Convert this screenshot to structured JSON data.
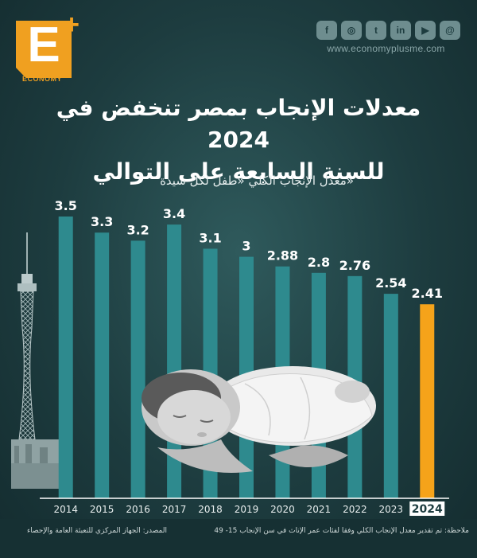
{
  "brand": {
    "logo_letter": "E",
    "logo_plus": "+",
    "logo_word": "ECONOMY",
    "website": "www.economyplusme.com",
    "socials": [
      {
        "icon": "facebook-icon",
        "glyph": "f"
      },
      {
        "icon": "instagram-icon",
        "glyph": "◎"
      },
      {
        "icon": "twitter-icon",
        "glyph": "t"
      },
      {
        "icon": "linkedin-icon",
        "glyph": "in"
      },
      {
        "icon": "youtube-icon",
        "glyph": "▶"
      },
      {
        "icon": "threads-icon",
        "glyph": "@"
      }
    ]
  },
  "title_line1": "معدلات الإنجاب بمصر تنخفض في 2024",
  "title_line2": "للسنة السابعة على التوالي",
  "colors": {
    "bar": "#2e8a8e",
    "highlight_bar": "#f5a31a",
    "background": "#1d3c3f",
    "text": "#ffffff"
  },
  "chart_data": {
    "type": "bar",
    "subtitle": "معدل الإنجاب الكلي «طفل لكل سيدة»",
    "categories": [
      "2014",
      "2015",
      "2016",
      "2017",
      "2018",
      "2019",
      "2020",
      "2021",
      "2022",
      "2023",
      "2024"
    ],
    "values": [
      3.5,
      3.3,
      3.2,
      3.4,
      3.1,
      3,
      2.88,
      2.8,
      2.76,
      2.54,
      2.41
    ],
    "value_labels": [
      "3.5",
      "3.3",
      "3.2",
      "3.4",
      "3.1",
      "3",
      "2.88",
      "2.8",
      "2.76",
      "2.54",
      "2.41"
    ],
    "highlight_category": "2024",
    "ylim": [
      0,
      3.5
    ],
    "grid": false,
    "legend": "none"
  },
  "footer": {
    "note": "ملاحظة: تم تقدير معدل الإنجاب الكلي وفقا لفئات عمر الإناث في سن الإنجاب 15- 49",
    "source": "المصدر: الجهاز المركزي للتعبئة العامة والإحصاء"
  }
}
